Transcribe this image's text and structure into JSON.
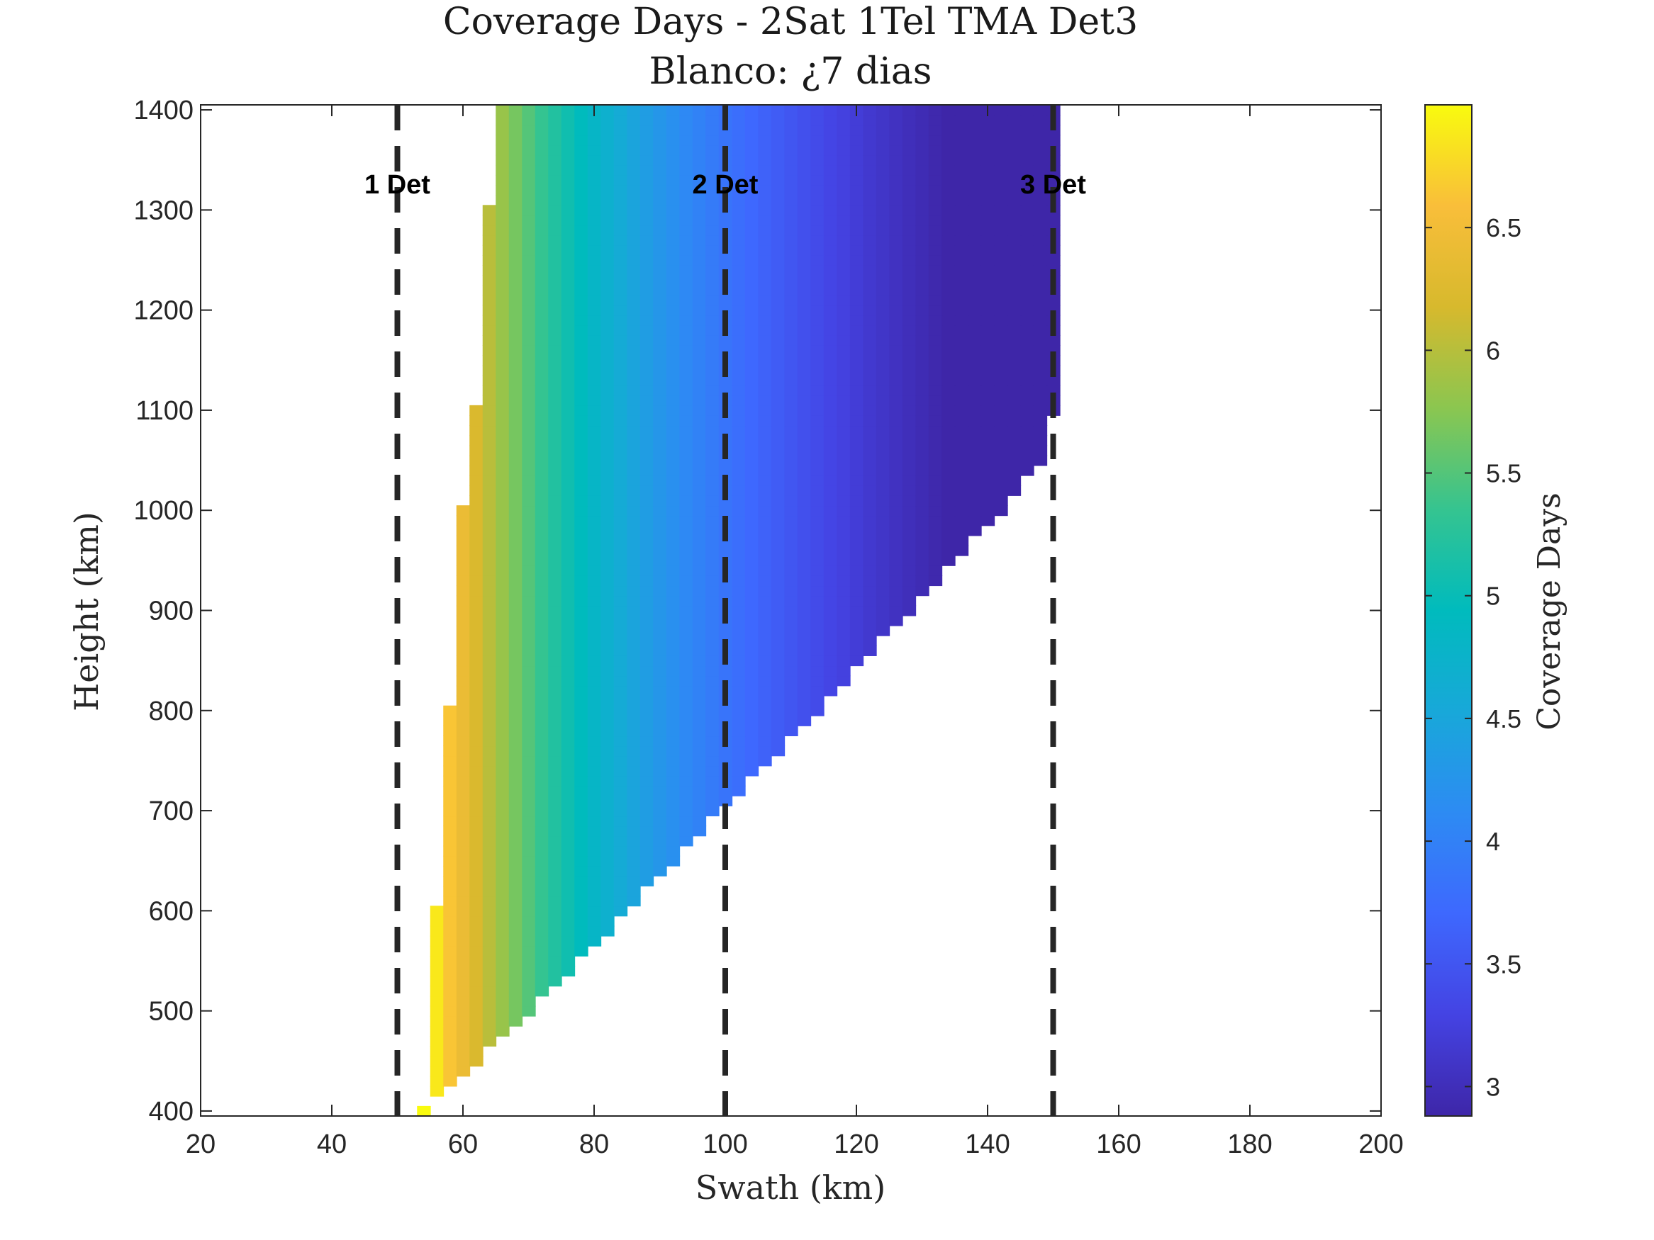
{
  "chart_data": {
    "type": "heatmap",
    "title": "Coverage Days - 2Sat 1Tel TMA Det3",
    "subtitle": "Blanco: ¿7 dias",
    "xlabel": "Swath (km)",
    "ylabel": "Height (km)",
    "xlim": [
      20,
      200
    ],
    "ylim": [
      395,
      1405
    ],
    "x_ticks": [
      20,
      40,
      60,
      80,
      100,
      120,
      140,
      160,
      180,
      200
    ],
    "y_ticks": [
      400,
      500,
      600,
      700,
      800,
      900,
      1000,
      1100,
      1200,
      1300,
      1400
    ],
    "x_step": 2,
    "y_step": 10,
    "colorbar": {
      "label": "Coverage Days",
      "range": [
        2.88,
        7.0
      ],
      "ticks": [
        3,
        3.5,
        4,
        4.5,
        5,
        5.5,
        6,
        6.5
      ],
      "colormap": "parula"
    },
    "value_model": {
      "formula": "coverage_days = 7 * 55 / swath",
      "description": "Filled region: swath from a left boundary (~54 km at 400 km height to ~66 km at 1400 km height) up to the 7-day-limit right boundary (~54 km at 400 km to ~150 km at ~1050 km height); cells over 7 days are left blank"
    },
    "left_boundary": {
      "height": [
        400,
        500,
        600,
        700,
        800,
        900,
        1000,
        1100,
        1200,
        1300,
        1400
      ],
      "swath": [
        54,
        55,
        56,
        57,
        58,
        59,
        60,
        62,
        63,
        64,
        66
      ]
    },
    "right_boundary": {
      "height": [
        400,
        500,
        600,
        700,
        800,
        900,
        1000,
        1050,
        1060,
        1100,
        1400
      ],
      "swath": [
        54,
        70,
        85,
        99,
        114,
        128,
        142,
        148,
        148,
        150,
        150
      ]
    },
    "vlines": [
      {
        "x": 50,
        "label": "1 Det",
        "style": "dashed"
      },
      {
        "x": 100,
        "label": "2 Det",
        "style": "dashed"
      },
      {
        "x": 150,
        "label": "3 Det",
        "style": "dashed"
      }
    ],
    "annotation_height": 1325
  }
}
